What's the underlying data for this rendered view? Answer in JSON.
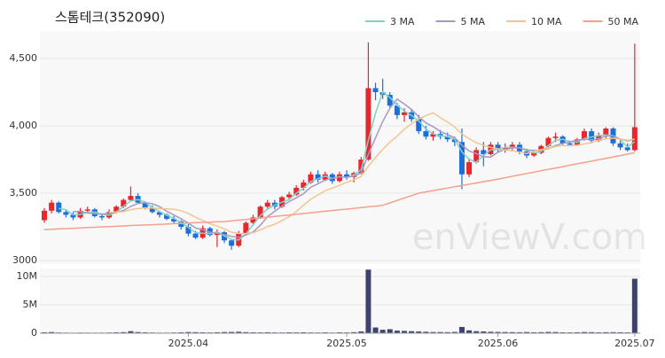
{
  "chart_data": [
    {
      "type": "candlestick",
      "title": "스톰테크(352090)",
      "watermark": "enViewV.com",
      "categories": [
        null,
        null,
        null,
        null,
        null,
        null,
        null,
        null,
        null,
        null,
        null,
        null,
        null,
        null,
        null,
        null,
        null,
        null,
        null,
        null,
        "2025.04",
        null,
        null,
        null,
        null,
        null,
        null,
        null,
        null,
        null,
        null,
        null,
        null,
        null,
        null,
        null,
        null,
        null,
        null,
        null,
        null,
        null,
        "2025.05",
        null,
        null,
        null,
        null,
        null,
        null,
        null,
        null,
        null,
        null,
        null,
        null,
        null,
        null,
        null,
        null,
        null,
        null,
        null,
        null,
        "2025.06",
        null,
        null,
        null,
        null,
        null,
        null,
        null,
        null,
        null,
        null,
        null,
        null,
        null,
        null,
        null,
        null,
        null,
        null,
        "2025.07"
      ],
      "open": [
        3300,
        3370,
        3430,
        3360,
        3340,
        3320,
        3370,
        3380,
        3330,
        3320,
        3360,
        3400,
        3450,
        3480,
        3430,
        3390,
        3360,
        3340,
        3310,
        3290,
        3250,
        3200,
        3170,
        3240,
        3190,
        3210,
        3150,
        3110,
        3200,
        3280,
        3320,
        3400,
        3430,
        3400,
        3470,
        3490,
        3540,
        3580,
        3640,
        3600,
        3640,
        3590,
        3640,
        3620,
        3650,
        3750,
        4280,
        4250,
        4230,
        4150,
        4080,
        4100,
        4050,
        3960,
        3920,
        3940,
        3920,
        3900,
        3880,
        3640,
        3730,
        3820,
        3790,
        3860,
        3820,
        3840,
        3860,
        3810,
        3780,
        3800,
        3850,
        3910,
        3920,
        3870,
        3860,
        3900,
        3960,
        3890,
        3930,
        3980,
        3870,
        3840,
        3820
      ],
      "high": [
        3390,
        3450,
        3440,
        3380,
        3360,
        3390,
        3400,
        3390,
        3350,
        3380,
        3410,
        3460,
        3550,
        3500,
        3440,
        3410,
        3370,
        3350,
        3330,
        3300,
        3270,
        3220,
        3260,
        3250,
        3230,
        3220,
        3160,
        3220,
        3290,
        3340,
        3410,
        3450,
        3450,
        3480,
        3510,
        3560,
        3600,
        3660,
        3670,
        3660,
        3650,
        3660,
        3670,
        3660,
        3770,
        4620,
        4320,
        4350,
        4250,
        4170,
        4130,
        4120,
        4080,
        4000,
        3960,
        3970,
        3950,
        3920,
        3980,
        3760,
        3840,
        3880,
        3880,
        3880,
        3870,
        3880,
        3880,
        3830,
        3820,
        3860,
        3920,
        3950,
        3930,
        3890,
        3910,
        3980,
        3980,
        3950,
        3990,
        3990,
        3890,
        3870,
        4610
      ],
      "low": [
        3280,
        3350,
        3350,
        3320,
        3300,
        3310,
        3350,
        3320,
        3300,
        3310,
        3350,
        3390,
        3440,
        3420,
        3380,
        3350,
        3320,
        3300,
        3270,
        3230,
        3180,
        3160,
        3160,
        3180,
        3100,
        3130,
        3080,
        3100,
        3190,
        3260,
        3310,
        3380,
        3380,
        3390,
        3450,
        3480,
        3520,
        3570,
        3580,
        3590,
        3570,
        3580,
        3600,
        3580,
        3640,
        3740,
        4190,
        4200,
        4130,
        4050,
        4030,
        4030,
        3940,
        3900,
        3890,
        3900,
        3880,
        3850,
        3530,
        3620,
        3720,
        3700,
        3780,
        3800,
        3800,
        3810,
        3790,
        3760,
        3770,
        3790,
        3840,
        3880,
        3860,
        3850,
        3850,
        3890,
        3870,
        3880,
        3910,
        3850,
        3820,
        3810,
        3810
      ],
      "close": [
        3370,
        3430,
        3360,
        3340,
        3320,
        3370,
        3380,
        3330,
        3320,
        3360,
        3400,
        3450,
        3480,
        3430,
        3390,
        3360,
        3340,
        3310,
        3290,
        3250,
        3200,
        3170,
        3240,
        3190,
        3210,
        3150,
        3110,
        3200,
        3280,
        3320,
        3400,
        3430,
        3400,
        3470,
        3490,
        3540,
        3580,
        3640,
        3600,
        3640,
        3590,
        3640,
        3620,
        3650,
        3750,
        4280,
        4250,
        4230,
        4150,
        4080,
        4100,
        4050,
        3960,
        3920,
        3940,
        3920,
        3900,
        3880,
        3640,
        3730,
        3820,
        3790,
        3860,
        3820,
        3840,
        3860,
        3810,
        3780,
        3800,
        3850,
        3910,
        3920,
        3870,
        3860,
        3900,
        3960,
        3890,
        3930,
        3980,
        3870,
        3840,
        3820,
        3990
      ],
      "up_color": "#e8262e",
      "down_color": "#1c6fd8",
      "series": [
        {
          "name": "3 MA",
          "color": "#7fd3c6",
          "values": [
            null,
            null,
            3387,
            3377,
            3340,
            3343,
            3357,
            3360,
            3343,
            3337,
            3360,
            3403,
            3443,
            3453,
            3433,
            3393,
            3363,
            3337,
            3313,
            3283,
            3247,
            3207,
            3203,
            3200,
            3213,
            3183,
            3157,
            3153,
            3197,
            3267,
            3333,
            3383,
            3410,
            3433,
            3453,
            3500,
            3537,
            3587,
            3607,
            3627,
            3610,
            3623,
            3617,
            3637,
            3673,
            3893,
            4093,
            4253,
            4210,
            4153,
            4110,
            4077,
            4037,
            3977,
            3940,
            3927,
            3920,
            3900,
            3807,
            3750,
            3730,
            3780,
            3823,
            3823,
            3840,
            3840,
            3837,
            3817,
            3797,
            3810,
            3853,
            3893,
            3900,
            3883,
            3877,
            3907,
            3917,
            3927,
            3933,
            3927,
            3897,
            3843,
            3883
          ]
        },
        {
          "name": "5 MA",
          "color": "#a898c8",
          "values": [
            null,
            null,
            null,
            null,
            3364,
            3364,
            3354,
            3348,
            3344,
            3352,
            3358,
            3372,
            3402,
            3424,
            3430,
            3422,
            3400,
            3366,
            3338,
            3310,
            3278,
            3242,
            3230,
            3210,
            3202,
            3192,
            3180,
            3172,
            3190,
            3212,
            3262,
            3326,
            3366,
            3404,
            3438,
            3466,
            3496,
            3544,
            3570,
            3598,
            3610,
            3622,
            3618,
            3628,
            3650,
            3788,
            3910,
            4032,
            4132,
            4198,
            4162,
            4122,
            4068,
            4022,
            3994,
            3958,
            3936,
            3912,
            3856,
            3814,
            3794,
            3772,
            3768,
            3804,
            3826,
            3836,
            3838,
            3822,
            3818,
            3820,
            3830,
            3854,
            3870,
            3882,
            3892,
            3902,
            3896,
            3906,
            3924,
            3926,
            3902,
            3888,
            3900
          ]
        },
        {
          "name": "10 MA",
          "color": "#f2c590",
          "values": [
            null,
            null,
            null,
            null,
            null,
            null,
            null,
            null,
            null,
            3358,
            3361,
            3363,
            3378,
            3386,
            3391,
            3390,
            3386,
            3384,
            3381,
            3370,
            3350,
            3321,
            3298,
            3274,
            3256,
            3235,
            3211,
            3201,
            3200,
            3207,
            3227,
            3253,
            3269,
            3297,
            3325,
            3364,
            3411,
            3455,
            3487,
            3518,
            3538,
            3559,
            3581,
            3599,
            3624,
            3699,
            3766,
            3825,
            3880,
            3924,
            3975,
            4016,
            4050,
            4077,
            4096,
            4060,
            4029,
            3990,
            3939,
            3904,
            3876,
            3854,
            3840,
            3830,
            3820,
            3815,
            3805,
            3795,
            3811,
            3823,
            3833,
            3846,
            3854,
            3852,
            3856,
            3866,
            3875,
            3894,
            3903,
            3909,
            3902,
            3892,
            3901
          ]
        },
        {
          "name": "50 MA",
          "color": "#f4a08c",
          "values": [
            3230,
            3232,
            3235,
            3237,
            3240,
            3242,
            3245,
            3247,
            3250,
            3252,
            3254,
            3257,
            3260,
            3262,
            3264,
            3266,
            3269,
            3271,
            3274,
            3276,
            3278,
            3281,
            3283,
            3285,
            3288,
            3290,
            3295,
            3300,
            3305,
            3311,
            3316,
            3322,
            3327,
            3333,
            3338,
            3344,
            3349,
            3355,
            3360,
            3366,
            3371,
            3377,
            3382,
            3388,
            3393,
            3399,
            3404,
            3410,
            3428,
            3446,
            3464,
            3482,
            3500,
            3510,
            3519,
            3529,
            3538,
            3548,
            3557,
            3567,
            3576,
            3586,
            3595,
            3605,
            3615,
            3626,
            3636,
            3646,
            3656,
            3667,
            3677,
            3687,
            3697,
            3708,
            3718,
            3728,
            3738,
            3749,
            3759,
            3769,
            3779,
            3790,
            3800
          ]
        }
      ],
      "ylim": [
        2974,
        4704
      ],
      "yticks": [
        3000,
        {
          "value": 3500,
          "label": "3,500"
        },
        {
          "value": 4000,
          "label": "4,000"
        },
        {
          "value": 4500,
          "label": "4,500"
        }
      ],
      "grid": true,
      "legend": "top-right"
    },
    {
      "type": "bar",
      "color": "#3d4270",
      "values": [
        150000,
        200000,
        120000,
        100000,
        90000,
        110000,
        100000,
        90000,
        100000,
        120000,
        150000,
        180000,
        350000,
        200000,
        150000,
        120000,
        100000,
        100000,
        120000,
        150000,
        200000,
        180000,
        150000,
        130000,
        160000,
        200000,
        220000,
        250000,
        180000,
        150000,
        140000,
        160000,
        130000,
        120000,
        150000,
        140000,
        160000,
        130000,
        120000,
        140000,
        110000,
        150000,
        130000,
        180000,
        300000,
        11200000,
        1000000,
        600000,
        700000,
        450000,
        400000,
        350000,
        300000,
        250000,
        200000,
        200000,
        180000,
        220000,
        1100000,
        500000,
        350000,
        300000,
        250000,
        220000,
        200000,
        180000,
        170000,
        200000,
        160000,
        180000,
        220000,
        200000,
        150000,
        140000,
        160000,
        200000,
        180000,
        150000,
        170000,
        180000,
        160000,
        140000,
        9600000
      ],
      "ylim": [
        0,
        11400000
      ],
      "yticks": [
        0,
        {
          "value": 5000000,
          "label": "5M"
        },
        {
          "value": 10000000,
          "label": "10M"
        }
      ],
      "grid": true
    }
  ]
}
